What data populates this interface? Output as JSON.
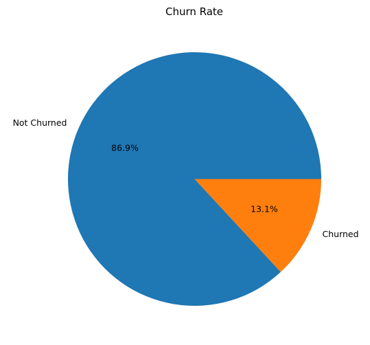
{
  "chart_data": {
    "type": "pie",
    "title": "Churn Rate",
    "slices": [
      {
        "label": "Not Churned",
        "value": 86.9,
        "pct_label": "86.9%",
        "color": "#1f77b4"
      },
      {
        "label": "Churned",
        "value": 13.1,
        "pct_label": "13.1%",
        "color": "#ff7f0e"
      }
    ],
    "start_angle_deg": 0,
    "direction": "counterclockwise"
  }
}
